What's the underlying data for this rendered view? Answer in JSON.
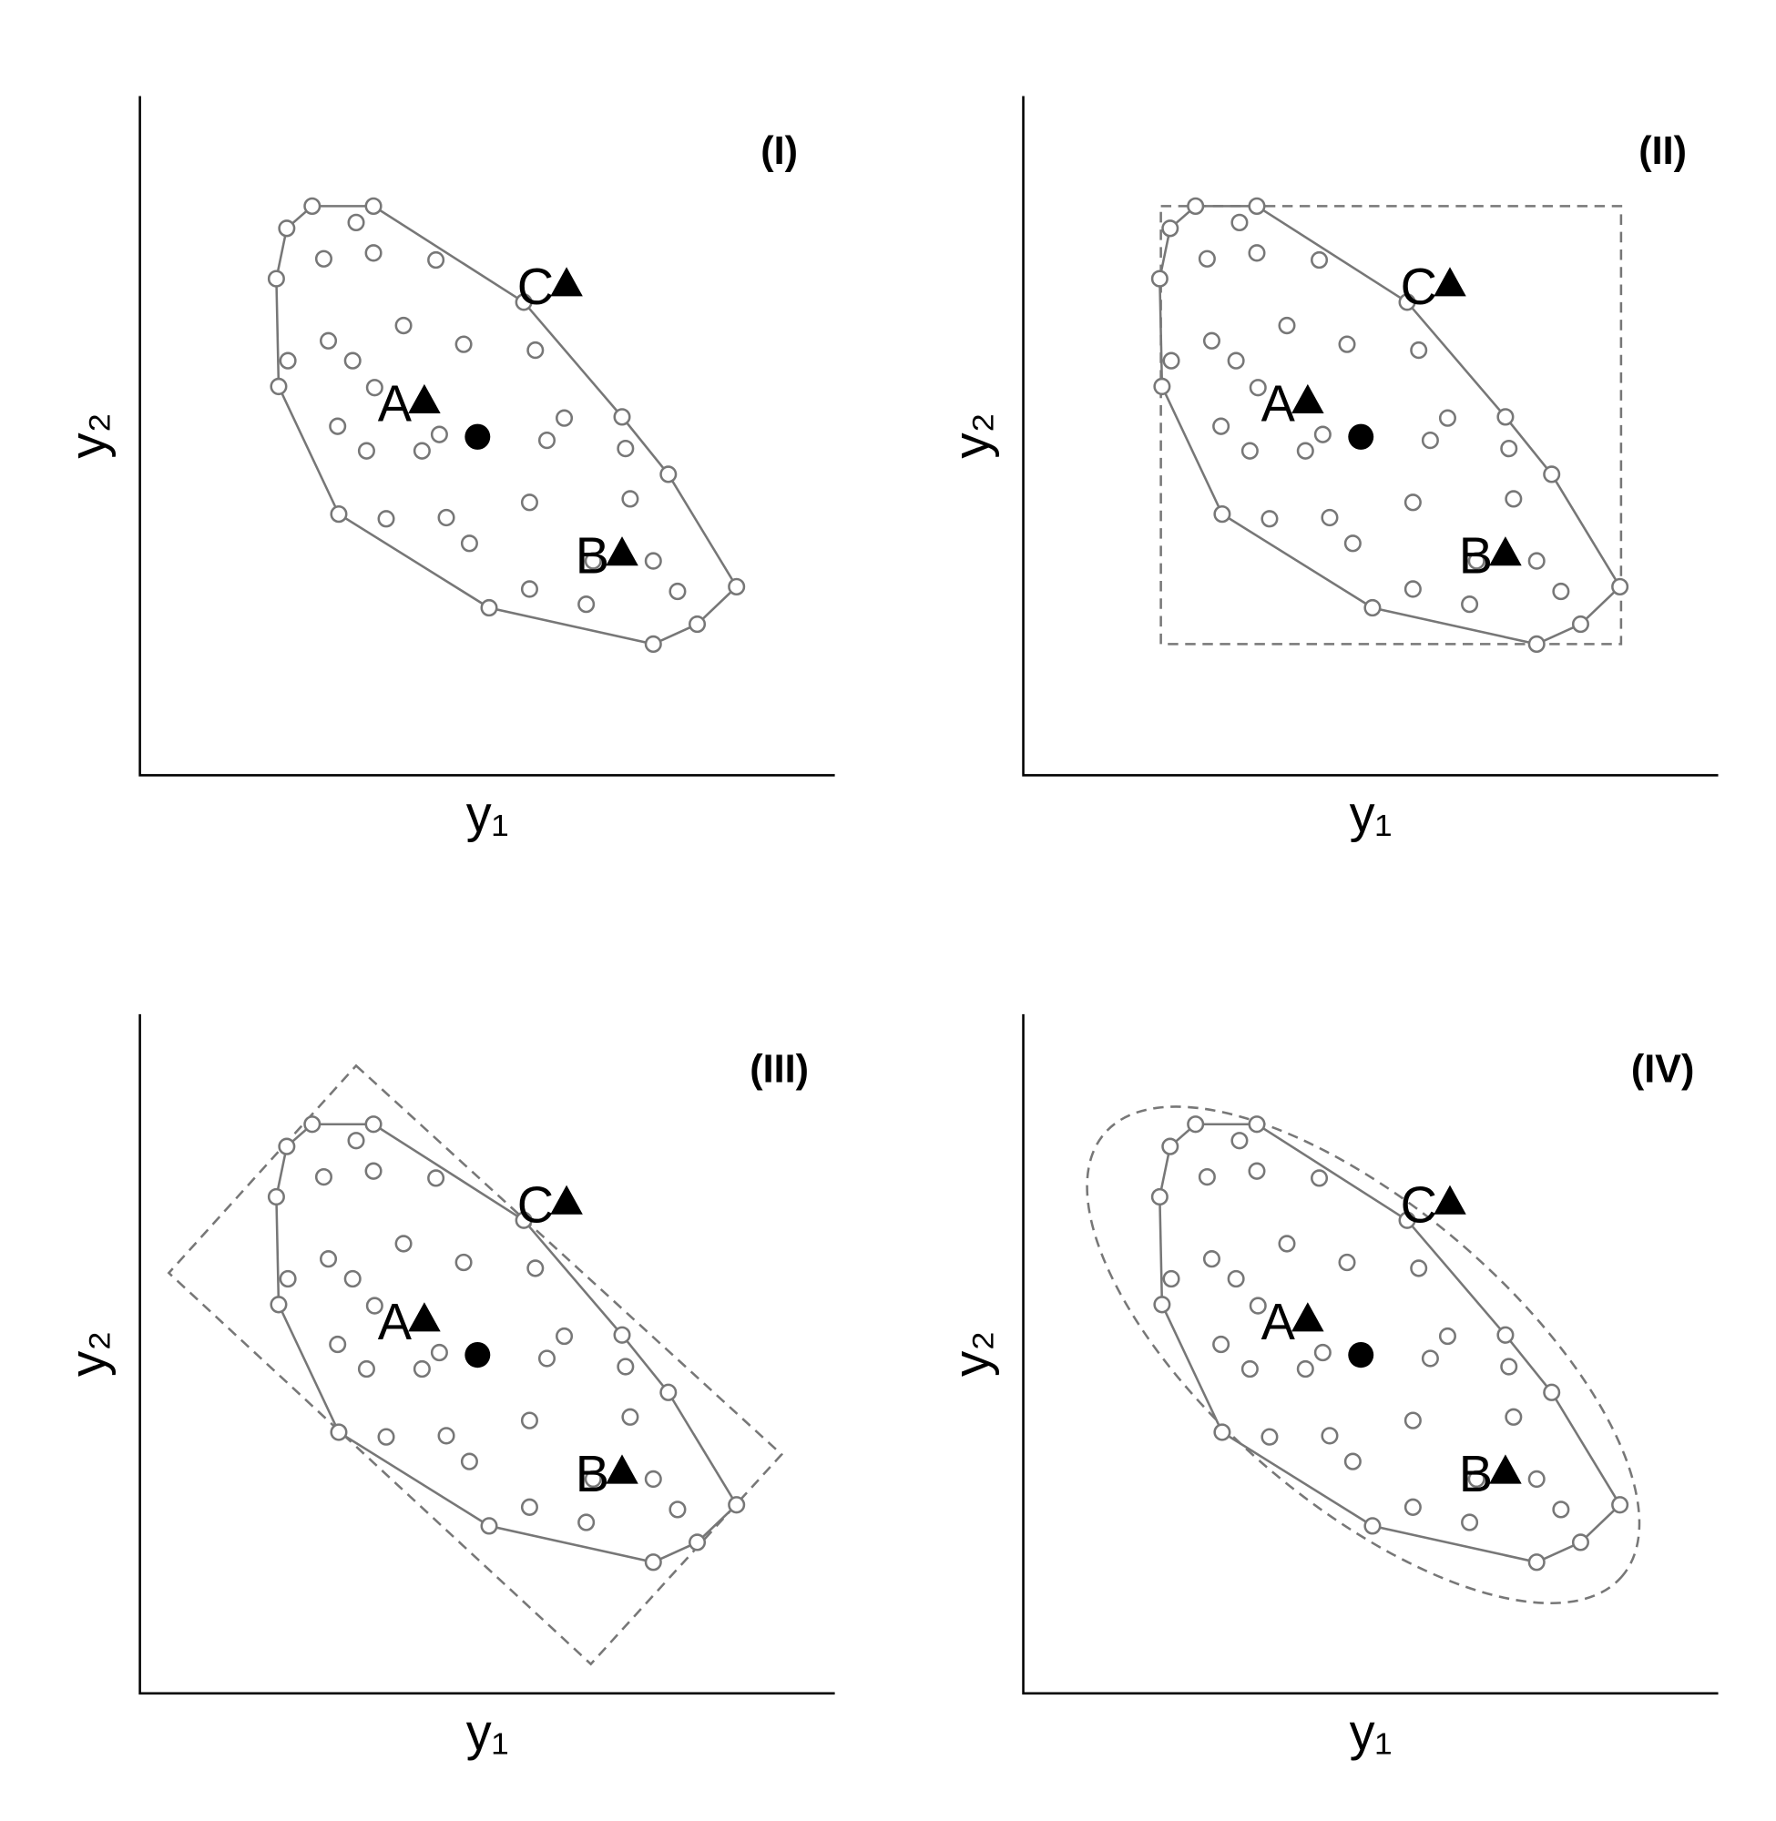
{
  "chart_data": [
    {
      "type": "scatter",
      "title": "(I)",
      "x_label": "y₁",
      "y_label": "y₂",
      "xlim": [
        0,
        601
      ],
      "ylim": [
        0,
        580
      ],
      "color": "#777777",
      "hull": {
        "x": [
          149,
          202,
          332,
          417,
          457,
          516,
          482,
          444,
          302,
          172,
          120,
          118,
          127
        ],
        "y": [
          486,
          486,
          404,
          306,
          257,
          161,
          129,
          112,
          143,
          223,
          332,
          424,
          467
        ]
      },
      "points": {
        "x": [
          187,
          159,
          202,
          256,
          228,
          163,
          184,
          128,
          280,
          342,
          203,
          367,
          171,
          259,
          352,
          196,
          244,
          420,
          337,
          424,
          213,
          265,
          285,
          392,
          444,
          337,
          386,
          465
        ],
        "y": [
          472,
          441,
          446,
          440,
          384,
          371,
          354,
          354,
          368,
          363,
          331,
          305,
          298,
          291,
          286,
          277,
          277,
          279,
          233,
          236,
          219,
          220,
          198,
          183,
          183,
          159,
          146,
          157
        ]
      },
      "center": {
        "x": 292,
        "y": 289
      },
      "markers": [
        {
          "label": "A",
          "x": 246,
          "y": 320
        },
        {
          "label": "B",
          "x": 417,
          "y": 190
        },
        {
          "label": "C",
          "x": 369,
          "y": 420
        }
      ]
    },
    {
      "type": "scatter",
      "title": "(II)",
      "x_label": "y₁",
      "y_label": "y₂",
      "xlim": [
        0,
        601
      ],
      "ylim": [
        0,
        580
      ],
      "color": "#777777",
      "hull": {
        "x": [
          149,
          202,
          332,
          417,
          457,
          516,
          482,
          444,
          302,
          172,
          120,
          118,
          127
        ],
        "y": [
          486,
          486,
          404,
          306,
          257,
          161,
          129,
          112,
          143,
          223,
          332,
          424,
          467
        ]
      },
      "points": {
        "x": [
          187,
          159,
          202,
          256,
          228,
          163,
          184,
          128,
          280,
          342,
          203,
          367,
          171,
          259,
          352,
          196,
          244,
          420,
          337,
          424,
          213,
          265,
          285,
          392,
          444,
          337,
          386,
          465
        ],
        "y": [
          472,
          441,
          446,
          440,
          384,
          371,
          354,
          354,
          368,
          363,
          331,
          305,
          298,
          291,
          286,
          277,
          277,
          279,
          233,
          236,
          219,
          220,
          198,
          183,
          183,
          159,
          146,
          157
        ]
      },
      "center": {
        "x": 292,
        "y": 289
      },
      "markers": [
        {
          "label": "A",
          "x": 246,
          "y": 320
        },
        {
          "label": "B",
          "x": 417,
          "y": 190
        },
        {
          "label": "C",
          "x": 369,
          "y": 420
        }
      ],
      "box": {
        "x": [
          119,
          517
        ],
        "y": [
          112,
          486
        ]
      }
    },
    {
      "type": "scatter",
      "title": "(III)",
      "x_label": "y₁",
      "y_label": "y₂",
      "xlim": [
        0,
        601
      ],
      "ylim": [
        0,
        580
      ],
      "color": "#777777",
      "hull": {
        "x": [
          149,
          202,
          332,
          417,
          457,
          516,
          482,
          444,
          302,
          172,
          120,
          118,
          127
        ],
        "y": [
          486,
          486,
          404,
          306,
          257,
          161,
          129,
          112,
          143,
          223,
          332,
          424,
          467
        ]
      },
      "points": {
        "x": [
          187,
          159,
          202,
          256,
          228,
          163,
          184,
          128,
          280,
          342,
          203,
          367,
          171,
          259,
          352,
          196,
          244,
          420,
          337,
          424,
          213,
          265,
          285,
          392,
          444,
          337,
          386,
          465
        ],
        "y": [
          472,
          441,
          446,
          440,
          384,
          371,
          354,
          354,
          368,
          363,
          331,
          305,
          298,
          291,
          286,
          277,
          277,
          279,
          233,
          236,
          219,
          220,
          198,
          183,
          183,
          159,
          146,
          157
        ]
      },
      "center": {
        "x": 292,
        "y": 289
      },
      "markers": [
        {
          "label": "A",
          "x": 246,
          "y": 320
        },
        {
          "label": "B",
          "x": 417,
          "y": 190
        },
        {
          "label": "C",
          "x": 369,
          "y": 420
        }
      ],
      "rectangle": {
        "x": [
          187,
          555,
          390,
          25
        ],
        "y": [
          536,
          204,
          25,
          359
        ]
      }
    },
    {
      "type": "scatter",
      "title": "(IV)",
      "x_label": "y₁",
      "y_label": "y₂",
      "xlim": [
        0,
        601
      ],
      "ylim": [
        0,
        580
      ],
      "color": "#777777",
      "hull": {
        "x": [
          149,
          202,
          332,
          417,
          457,
          516,
          482,
          444,
          302,
          172,
          120,
          118,
          127
        ],
        "y": [
          486,
          486,
          404,
          306,
          257,
          161,
          129,
          112,
          143,
          223,
          332,
          424,
          467
        ]
      },
      "points": {
        "x": [
          187,
          159,
          202,
          256,
          228,
          163,
          184,
          128,
          280,
          342,
          203,
          367,
          171,
          259,
          352,
          196,
          244,
          420,
          337,
          424,
          213,
          265,
          285,
          392,
          444,
          337,
          386,
          465
        ],
        "y": [
          472,
          441,
          446,
          440,
          384,
          371,
          354,
          354,
          368,
          363,
          331,
          305,
          298,
          291,
          286,
          277,
          277,
          279,
          233,
          236,
          219,
          220,
          198,
          183,
          183,
          159,
          146,
          157
        ]
      },
      "center": {
        "x": 292,
        "y": 289
      },
      "markers": [
        {
          "label": "A",
          "x": 246,
          "y": 320
        },
        {
          "label": "B",
          "x": 417,
          "y": 190
        },
        {
          "label": "C",
          "x": 369,
          "y": 420
        }
      ],
      "ellipse": {
        "cx": 294,
        "cy": 289,
        "rx": 293,
        "ry": 127,
        "angle": -40
      }
    }
  ]
}
